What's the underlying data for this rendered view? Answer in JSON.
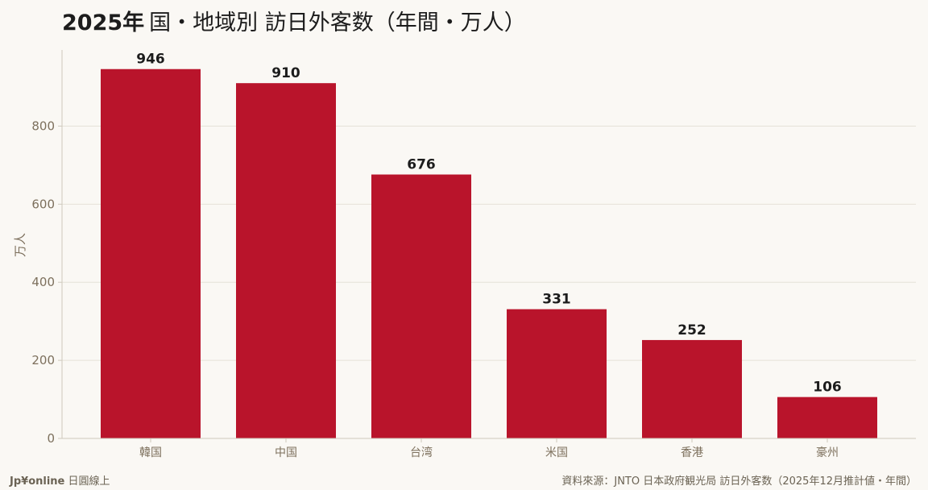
{
  "colors": {
    "bar": "#b9142b",
    "grid": "#e5e1d8",
    "axis": "#cfc9bd",
    "tick_text": "#7d705d",
    "value_text": "#1c1c1c",
    "title_text": "#1c1c1c"
  },
  "chart_data": {
    "type": "bar",
    "title_prefix": "2025年",
    "title_rest": "国・地域別 訪日外客数（年間・万人）",
    "ylabel": "万人",
    "xlabel": "",
    "categories": [
      "韓国",
      "中国",
      "台湾",
      "米国",
      "香港",
      "豪州"
    ],
    "values": [
      946,
      910,
      676,
      331,
      252,
      106
    ],
    "ylim": [
      0,
      995
    ],
    "yticks": [
      0,
      200,
      400,
      600,
      800
    ],
    "grid": true,
    "legend": "none"
  },
  "footer": {
    "brand": "Jp¥online",
    "brand_sub": "日圓線上",
    "source": "資料來源：JNTO 日本政府観光局 訪日外客数（2025年12月推計値・年間）"
  }
}
